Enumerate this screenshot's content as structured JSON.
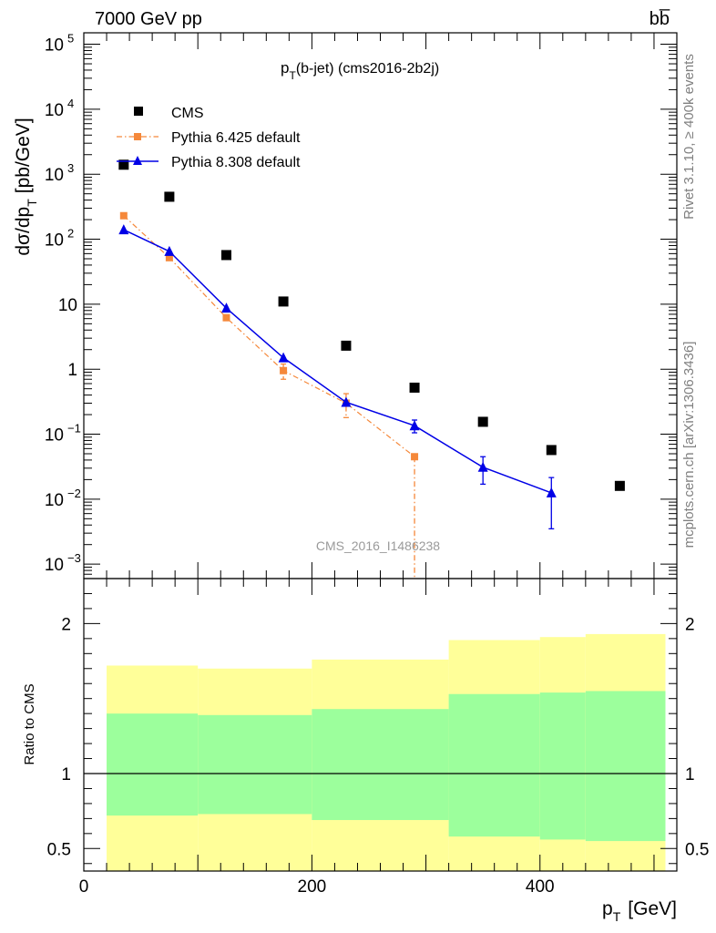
{
  "header": {
    "energy_label": "7000 GeV pp",
    "process_label": "bb̅"
  },
  "side_labels": {
    "rivet": "Rivet 3.1.10, ≥ 400k events",
    "mcplots": "mcplots.cern.ch [arXiv:1306.3436]"
  },
  "watermark": "CMS_2016_I1486238",
  "colors": {
    "cms": "#000000",
    "pythia6": "#f5883a",
    "pythia8": "#0000e6",
    "band_inner": "#9cff9c",
    "band_outer": "#ffff99"
  },
  "chart_data": [
    {
      "type": "scatter",
      "title_main": "p",
      "title_sub": "T",
      "title_rest": "(b-jet) (cms2016-2b2j)",
      "ylabel": "dσ/dp",
      "ylabel_sub": "T",
      "ylabel_unit": "[pb/GeV]",
      "yscale": "log",
      "ylim": [
        0.0006,
        150000
      ],
      "xlim": [
        0,
        520
      ],
      "y_ticks": [
        {
          "v": 0.001,
          "base": "10",
          "exp": "−3"
        },
        {
          "v": 0.01,
          "base": "10",
          "exp": "−2"
        },
        {
          "v": 0.1,
          "base": "10",
          "exp": "−1"
        },
        {
          "v": 1,
          "base": "1",
          "exp": ""
        },
        {
          "v": 10,
          "base": "10",
          "exp": ""
        },
        {
          "v": 100,
          "base": "10",
          "exp": "2"
        },
        {
          "v": 1000,
          "base": "10",
          "exp": "3"
        },
        {
          "v": 10000,
          "base": "10",
          "exp": "4"
        },
        {
          "v": 100000,
          "base": "10",
          "exp": "5"
        }
      ],
      "legend_position": "top-left",
      "series": [
        {
          "name": "CMS",
          "marker": "square",
          "x": [
            35,
            75,
            125,
            175,
            230,
            290,
            350,
            410,
            470
          ],
          "y": [
            1400,
            450,
            57,
            11,
            2.3,
            0.52,
            0.155,
            0.057,
            0.016
          ]
        },
        {
          "name": "Pythia 6.425 default",
          "marker": "small-square",
          "x": [
            35,
            75,
            125,
            175,
            230,
            290
          ],
          "y": [
            230,
            52,
            6.2,
            0.95,
            0.3,
            0.045
          ],
          "err_lo": [
            0,
            0,
            0,
            0.25,
            0.12,
            0.0445
          ],
          "err_hi": [
            0,
            0,
            0,
            0.25,
            0.12,
            0.0
          ]
        },
        {
          "name": "Pythia 8.308 default",
          "marker": "triangle",
          "x": [
            35,
            75,
            125,
            175,
            230,
            290,
            350,
            410
          ],
          "y": [
            140,
            65,
            8.7,
            1.5,
            0.31,
            0.135,
            0.031,
            0.0125
          ],
          "err_lo": [
            0,
            0,
            0,
            0,
            0,
            0.03,
            0.014,
            0.009
          ],
          "err_hi": [
            0,
            0,
            0,
            0,
            0,
            0.03,
            0.014,
            0.009
          ]
        }
      ]
    },
    {
      "type": "area",
      "ylabel": "Ratio to CMS",
      "xlabel_main": "p",
      "xlabel_sub": "T",
      "xlabel_unit": "[GeV]",
      "ylim": [
        0.35,
        2.3
      ],
      "xlim": [
        0,
        520
      ],
      "x_ticks": [
        "0",
        "200",
        "400"
      ],
      "x_tick_values": [
        0,
        200,
        400
      ],
      "y_ticks": [
        "0.5",
        "1",
        "2"
      ],
      "y_tick_values": [
        0.5,
        1,
        2
      ],
      "reference_line": 1,
      "bins": [
        {
          "x0": 20,
          "x1": 100,
          "inner_lo": 0.72,
          "inner_hi": 1.4,
          "outer_lo": 0.35,
          "outer_hi": 1.72
        },
        {
          "x0": 100,
          "x1": 200,
          "inner_lo": 0.73,
          "inner_hi": 1.39,
          "outer_lo": 0.35,
          "outer_hi": 1.7
        },
        {
          "x0": 200,
          "x1": 320,
          "inner_lo": 0.69,
          "inner_hi": 1.43,
          "outer_lo": 0.35,
          "outer_hi": 1.76
        },
        {
          "x0": 320,
          "x1": 400,
          "inner_lo": 0.58,
          "inner_hi": 1.53,
          "outer_lo": 0.35,
          "outer_hi": 1.89
        },
        {
          "x0": 400,
          "x1": 440,
          "inner_lo": 0.56,
          "inner_hi": 1.54,
          "outer_lo": 0.35,
          "outer_hi": 1.91
        },
        {
          "x0": 440,
          "x1": 510,
          "inner_lo": 0.55,
          "inner_hi": 1.55,
          "outer_lo": 0.35,
          "outer_hi": 1.93
        }
      ]
    }
  ]
}
